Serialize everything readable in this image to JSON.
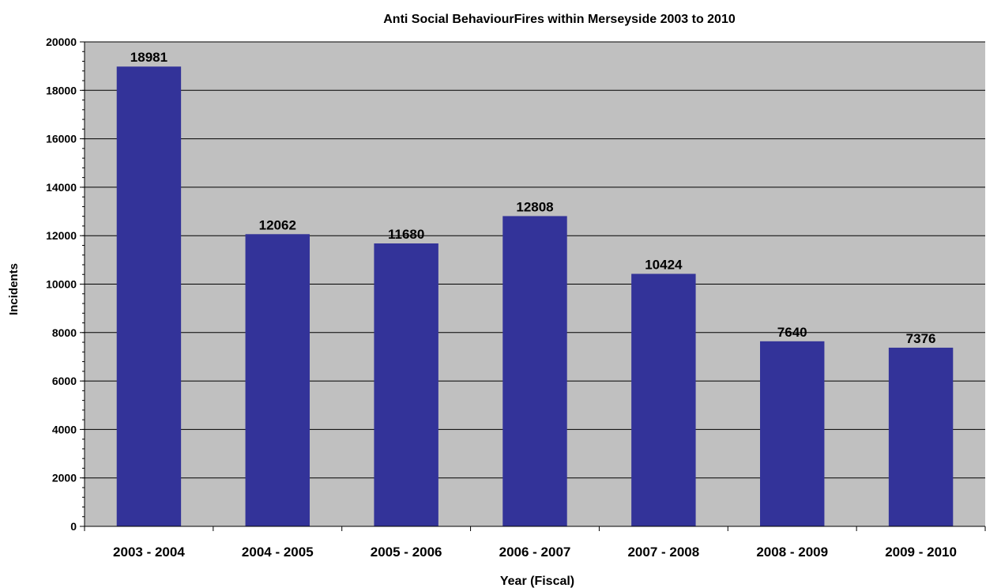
{
  "chart_data": {
    "type": "bar",
    "title": "Anti Social BehaviourFires within Merseyside 2003 to 2010",
    "xlabel": "Year (Fiscal)",
    "ylabel": "Incidents",
    "categories": [
      "2003 - 2004",
      "2004 - 2005",
      "2005 - 2006",
      "2006 - 2007",
      "2007 - 2008",
      "2008 - 2009",
      "2009 - 2010"
    ],
    "values": [
      18981,
      12062,
      11680,
      12808,
      10424,
      7640,
      7376
    ],
    "ylim": [
      0,
      20000
    ],
    "yticks": [
      "0",
      "2000",
      "4000",
      "6000",
      "8000",
      "10000",
      "12000",
      "14000",
      "16000",
      "18000",
      "20000"
    ],
    "data_labels": [
      "18981",
      "12062",
      "11680",
      "12808",
      "10424",
      "7640",
      "7376"
    ],
    "grid": true,
    "legend": "none",
    "colors": {
      "bar": "#333399",
      "plot_background": "#c0c0c0",
      "gridline": "#000000"
    }
  }
}
